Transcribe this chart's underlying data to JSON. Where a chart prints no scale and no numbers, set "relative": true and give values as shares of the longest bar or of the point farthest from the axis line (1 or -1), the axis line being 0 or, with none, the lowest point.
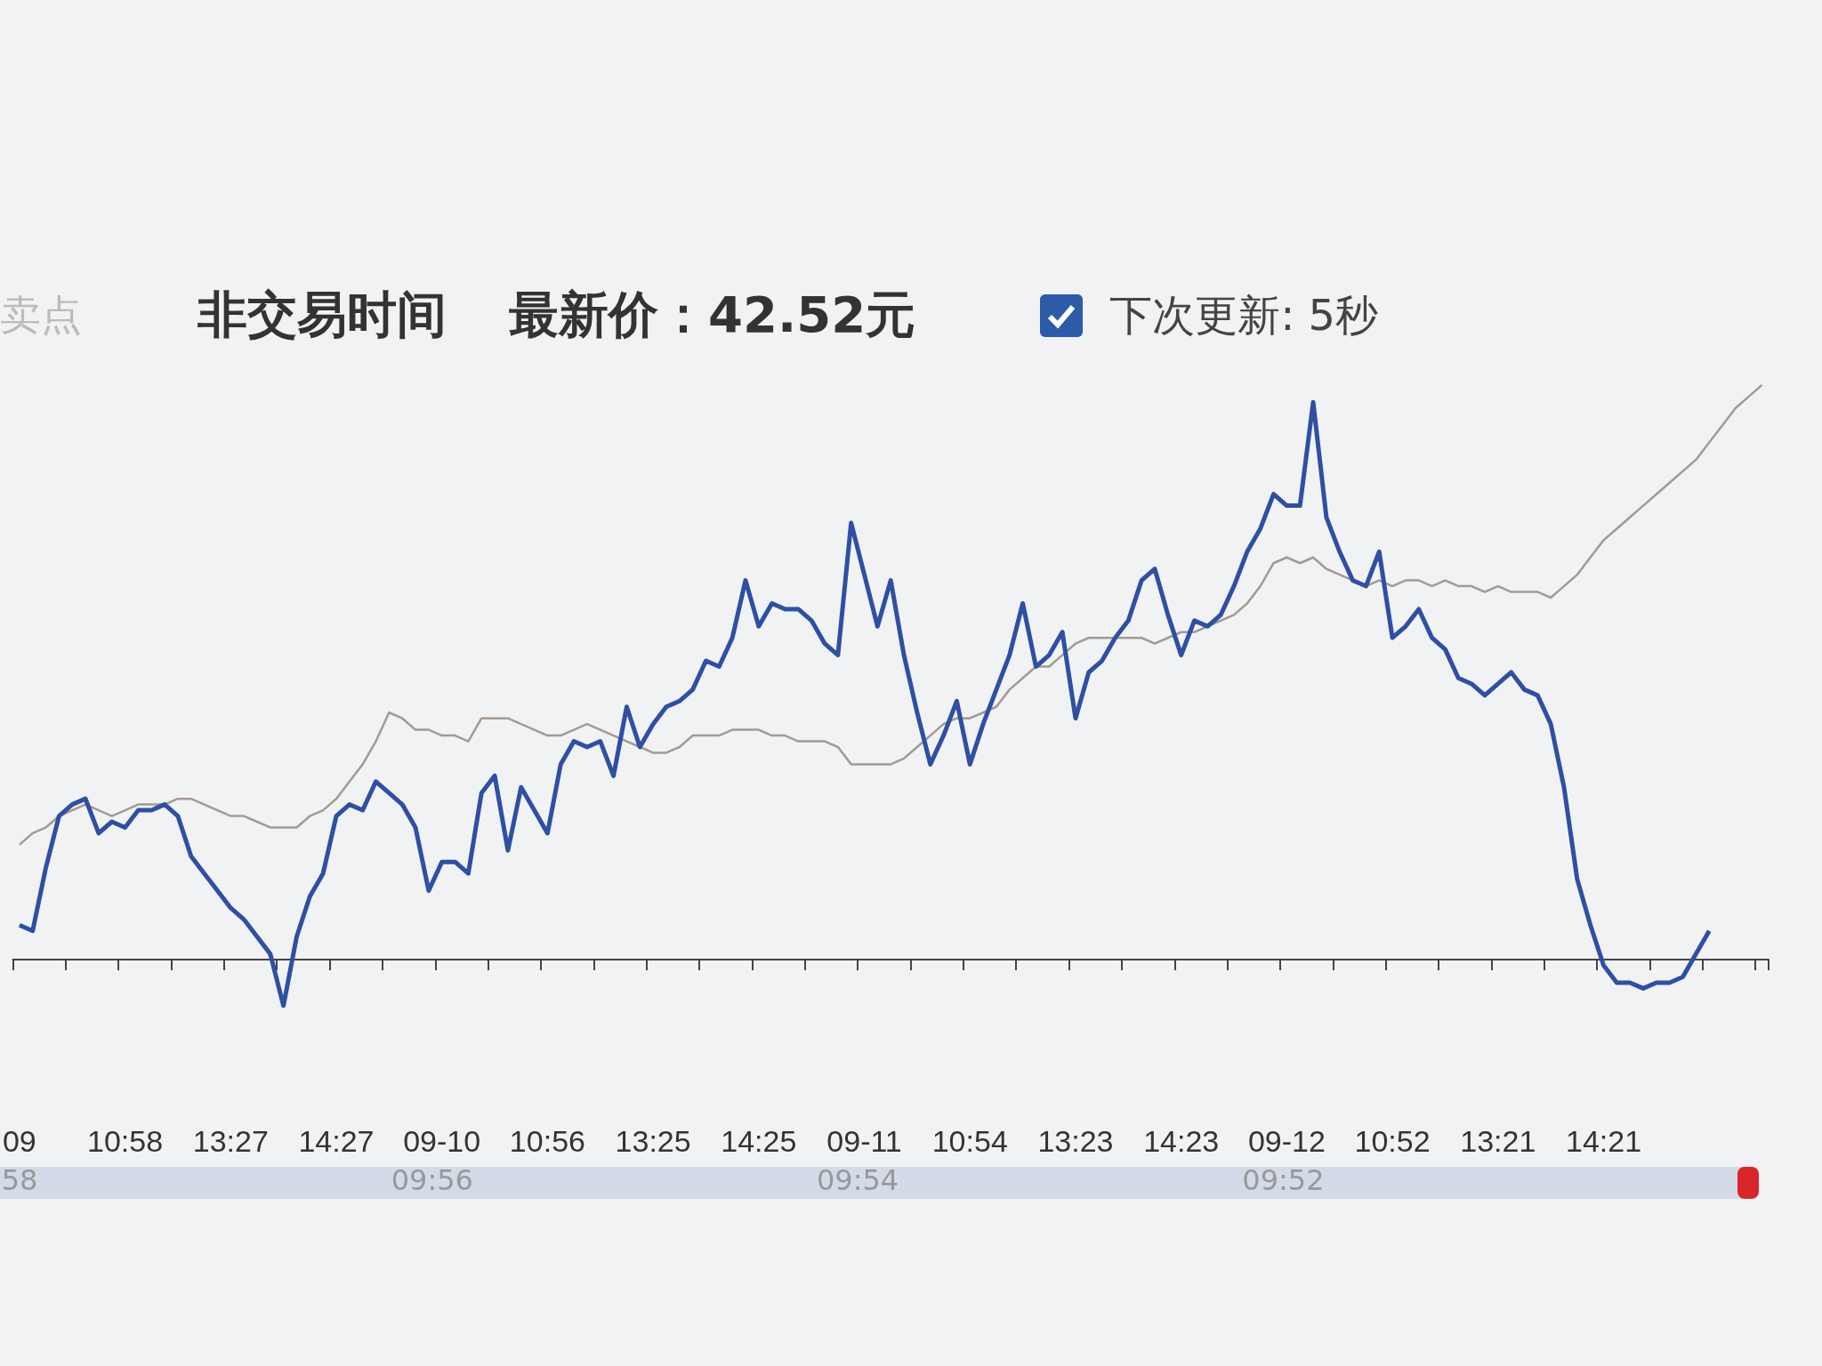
{
  "chart_data": {
    "type": "line",
    "title": "非交易时间",
    "subtitle": "最新价：42.52元",
    "relative": true,
    "marker": "none",
    "annotations": [
      "卖点",
      "下次更新: 5秒",
      "58",
      "09:56",
      "09:54",
      "09:52"
    ],
    "categories": [
      "09",
      null,
      null,
      null,
      null,
      null,
      null,
      null,
      "10:58",
      null,
      null,
      null,
      null,
      null,
      null,
      null,
      "13:27",
      null,
      null,
      null,
      null,
      null,
      null,
      null,
      "14:27",
      null,
      null,
      null,
      null,
      null,
      null,
      null,
      "09-10",
      null,
      null,
      null,
      null,
      null,
      null,
      null,
      "10:56",
      null,
      null,
      null,
      null,
      null,
      null,
      null,
      "13:25",
      null,
      null,
      null,
      null,
      null,
      null,
      null,
      "14:25",
      null,
      null,
      null,
      null,
      null,
      null,
      null,
      "09-11",
      null,
      null,
      null,
      null,
      null,
      null,
      null,
      "10:54",
      null,
      null,
      null,
      null,
      null,
      null,
      null,
      "13:23",
      null,
      null,
      null,
      null,
      null,
      null,
      null,
      "14:23",
      null,
      null,
      null,
      null,
      null,
      null,
      null,
      "09-12",
      null,
      null,
      null,
      null,
      null,
      null,
      null,
      "10:52",
      null,
      null,
      null,
      null,
      null,
      null,
      null,
      "13:21",
      null,
      null,
      null,
      null,
      null,
      null,
      null,
      "14:21",
      null,
      null,
      null,
      null,
      null,
      null,
      null,
      null,
      null,
      null,
      null,
      null
    ],
    "series": [
      {
        "color": "#a39a92",
        "values": [
          0.2,
          0.22,
          0.23,
          0.25,
          0.26,
          0.27,
          0.26,
          0.25,
          0.26,
          0.27,
          0.27,
          0.27,
          0.28,
          0.28,
          0.27,
          0.26,
          0.25,
          0.25,
          0.24,
          0.23,
          0.23,
          0.23,
          0.25,
          0.26,
          0.28,
          0.31,
          0.34,
          0.38,
          0.43,
          0.42,
          0.4,
          0.4,
          0.39,
          0.39,
          0.38,
          0.42,
          0.42,
          0.42,
          0.41,
          0.4,
          0.39,
          0.39,
          0.4,
          0.41,
          0.4,
          0.39,
          0.38,
          0.37,
          0.36,
          0.36,
          0.37,
          0.39,
          0.39,
          0.39,
          0.4,
          0.4,
          0.4,
          0.39,
          0.39,
          0.38,
          0.38,
          0.38,
          0.37,
          0.34,
          0.34,
          0.34,
          0.34,
          0.35,
          0.37,
          0.39,
          0.41,
          0.42,
          0.42,
          0.43,
          0.44,
          0.47,
          0.49,
          0.51,
          0.51,
          0.53,
          0.55,
          0.56,
          0.56,
          0.56,
          0.56,
          0.56,
          0.55,
          0.56,
          0.57,
          0.57,
          0.58,
          0.59,
          0.6,
          0.62,
          0.65,
          0.69,
          0.7,
          0.69,
          0.7,
          0.68,
          0.67,
          0.66,
          0.65,
          0.66,
          0.65,
          0.66,
          0.66,
          0.65,
          0.66,
          0.65,
          0.65,
          0.64,
          0.65,
          0.64,
          0.64,
          0.64,
          0.63,
          0.65,
          0.67,
          0.7,
          0.73,
          0.75,
          0.77,
          0.79,
          0.81,
          0.83,
          0.85,
          0.87,
          0.9,
          0.93,
          0.96,
          0.98,
          1.0
        ]
      },
      {
        "color": "#2f4fa3",
        "values": [
          0.06,
          0.05,
          0.16,
          0.25,
          0.27,
          0.28,
          0.22,
          0.24,
          0.23,
          0.26,
          0.26,
          0.27,
          0.25,
          0.18,
          0.15,
          0.12,
          0.09,
          0.07,
          0.04,
          0.01,
          -0.08,
          0.04,
          0.11,
          0.15,
          0.25,
          0.27,
          0.26,
          0.31,
          0.29,
          0.27,
          0.23,
          0.12,
          0.17,
          0.17,
          0.15,
          0.29,
          0.32,
          0.19,
          0.3,
          0.26,
          0.22,
          0.34,
          0.38,
          0.37,
          0.38,
          0.32,
          0.44,
          0.37,
          0.41,
          0.44,
          0.45,
          0.47,
          0.52,
          0.51,
          0.56,
          0.66,
          0.58,
          0.62,
          0.61,
          0.61,
          0.59,
          0.55,
          0.53,
          0.76,
          0.67,
          0.58,
          0.66,
          0.53,
          0.43,
          0.34,
          0.39,
          0.45,
          0.34,
          0.41,
          0.47,
          0.53,
          0.62,
          0.51,
          0.53,
          0.57,
          0.42,
          0.5,
          0.52,
          0.56,
          0.59,
          0.66,
          0.68,
          0.6,
          0.53,
          0.59,
          0.58,
          0.6,
          0.65,
          0.71,
          0.75,
          0.81,
          0.79,
          0.79,
          0.97,
          0.77,
          0.71,
          0.66,
          0.65,
          0.71,
          0.56,
          0.58,
          0.61,
          0.56,
          0.54,
          0.49,
          0.48,
          0.46,
          0.48,
          0.5,
          0.47,
          0.46,
          0.41,
          0.3,
          0.14,
          0.06,
          -0.01,
          -0.04,
          -0.04,
          -0.05,
          -0.04,
          -0.04,
          -0.03,
          0.01,
          0.05,
          null,
          null,
          null,
          null
        ]
      }
    ]
  }
}
